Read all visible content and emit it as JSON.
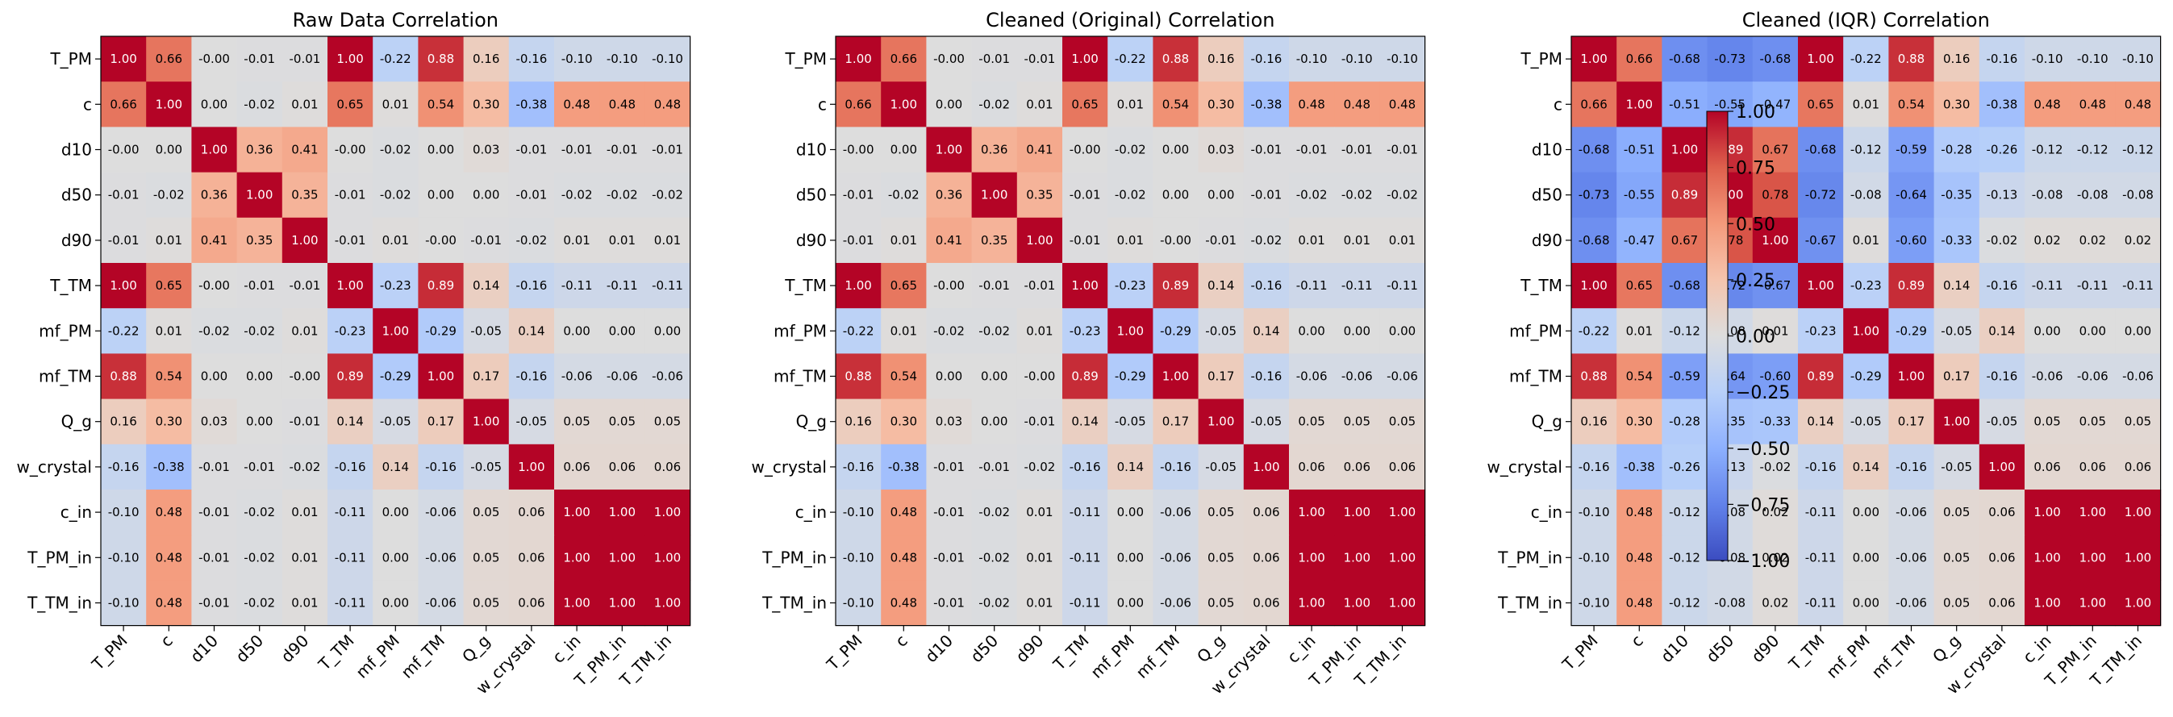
{
  "chart_data": [
    {
      "type": "heatmap",
      "title": "Raw Data Correlation",
      "labels": [
        "T_PM",
        "c",
        "d10",
        "d50",
        "d90",
        "T_TM",
        "mf_PM",
        "mf_TM",
        "Q_g",
        "w_crystal",
        "c_in",
        "T_PM_in",
        "T_TM_in"
      ],
      "value_range": [
        -1,
        1
      ],
      "colormap": "coolwarm",
      "values": [
        [
          1.0,
          0.66,
          -0.0,
          -0.01,
          -0.01,
          1.0,
          -0.22,
          0.88,
          0.16,
          -0.16,
          -0.1,
          -0.1,
          -0.1
        ],
        [
          0.66,
          1.0,
          0.0,
          -0.02,
          0.01,
          0.65,
          0.01,
          0.54,
          0.3,
          -0.38,
          0.48,
          0.48,
          0.48
        ],
        [
          -0.0,
          0.0,
          1.0,
          0.36,
          0.41,
          -0.0,
          -0.02,
          0.0,
          0.03,
          -0.01,
          -0.01,
          -0.01,
          -0.01
        ],
        [
          -0.01,
          -0.02,
          0.36,
          1.0,
          0.35,
          -0.01,
          -0.02,
          0.0,
          0.0,
          -0.01,
          -0.02,
          -0.02,
          -0.02
        ],
        [
          -0.01,
          0.01,
          0.41,
          0.35,
          1.0,
          -0.01,
          0.01,
          -0.0,
          -0.01,
          -0.02,
          0.01,
          0.01,
          0.01
        ],
        [
          1.0,
          0.65,
          -0.0,
          -0.01,
          -0.01,
          1.0,
          -0.23,
          0.89,
          0.14,
          -0.16,
          -0.11,
          -0.11,
          -0.11
        ],
        [
          -0.22,
          0.01,
          -0.02,
          -0.02,
          0.01,
          -0.23,
          1.0,
          -0.29,
          -0.05,
          0.14,
          0.0,
          0.0,
          0.0
        ],
        [
          0.88,
          0.54,
          0.0,
          0.0,
          -0.0,
          0.89,
          -0.29,
          1.0,
          0.17,
          -0.16,
          -0.06,
          -0.06,
          -0.06
        ],
        [
          0.16,
          0.3,
          0.03,
          0.0,
          -0.01,
          0.14,
          -0.05,
          0.17,
          1.0,
          -0.05,
          0.05,
          0.05,
          0.05
        ],
        [
          -0.16,
          -0.38,
          -0.01,
          -0.01,
          -0.02,
          -0.16,
          0.14,
          -0.16,
          -0.05,
          1.0,
          0.06,
          0.06,
          0.06
        ],
        [
          -0.1,
          0.48,
          -0.01,
          -0.02,
          0.01,
          -0.11,
          0.0,
          -0.06,
          0.05,
          0.06,
          1.0,
          1.0,
          1.0
        ],
        [
          -0.1,
          0.48,
          -0.01,
          -0.02,
          0.01,
          -0.11,
          0.0,
          -0.06,
          0.05,
          0.06,
          1.0,
          1.0,
          1.0
        ],
        [
          -0.1,
          0.48,
          -0.01,
          -0.02,
          0.01,
          -0.11,
          0.0,
          -0.06,
          0.05,
          0.06,
          1.0,
          1.0,
          1.0
        ]
      ]
    },
    {
      "type": "heatmap",
      "title": "Cleaned (Original) Correlation",
      "labels": [
        "T_PM",
        "c",
        "d10",
        "d50",
        "d90",
        "T_TM",
        "mf_PM",
        "mf_TM",
        "Q_g",
        "w_crystal",
        "c_in",
        "T_PM_in",
        "T_TM_in"
      ],
      "value_range": [
        -1,
        1
      ],
      "colormap": "coolwarm",
      "values": [
        [
          1.0,
          0.66,
          -0.0,
          -0.01,
          -0.01,
          1.0,
          -0.22,
          0.88,
          0.16,
          -0.16,
          -0.1,
          -0.1,
          -0.1
        ],
        [
          0.66,
          1.0,
          0.0,
          -0.02,
          0.01,
          0.65,
          0.01,
          0.54,
          0.3,
          -0.38,
          0.48,
          0.48,
          0.48
        ],
        [
          -0.0,
          0.0,
          1.0,
          0.36,
          0.41,
          -0.0,
          -0.02,
          0.0,
          0.03,
          -0.01,
          -0.01,
          -0.01,
          -0.01
        ],
        [
          -0.01,
          -0.02,
          0.36,
          1.0,
          0.35,
          -0.01,
          -0.02,
          0.0,
          0.0,
          -0.01,
          -0.02,
          -0.02,
          -0.02
        ],
        [
          -0.01,
          0.01,
          0.41,
          0.35,
          1.0,
          -0.01,
          0.01,
          -0.0,
          -0.01,
          -0.02,
          0.01,
          0.01,
          0.01
        ],
        [
          1.0,
          0.65,
          -0.0,
          -0.01,
          -0.01,
          1.0,
          -0.23,
          0.89,
          0.14,
          -0.16,
          -0.11,
          -0.11,
          -0.11
        ],
        [
          -0.22,
          0.01,
          -0.02,
          -0.02,
          0.01,
          -0.23,
          1.0,
          -0.29,
          -0.05,
          0.14,
          0.0,
          0.0,
          0.0
        ],
        [
          0.88,
          0.54,
          0.0,
          0.0,
          -0.0,
          0.89,
          -0.29,
          1.0,
          0.17,
          -0.16,
          -0.06,
          -0.06,
          -0.06
        ],
        [
          0.16,
          0.3,
          0.03,
          0.0,
          -0.01,
          0.14,
          -0.05,
          0.17,
          1.0,
          -0.05,
          0.05,
          0.05,
          0.05
        ],
        [
          -0.16,
          -0.38,
          -0.01,
          -0.01,
          -0.02,
          -0.16,
          0.14,
          -0.16,
          -0.05,
          1.0,
          0.06,
          0.06,
          0.06
        ],
        [
          -0.1,
          0.48,
          -0.01,
          -0.02,
          0.01,
          -0.11,
          0.0,
          -0.06,
          0.05,
          0.06,
          1.0,
          1.0,
          1.0
        ],
        [
          -0.1,
          0.48,
          -0.01,
          -0.02,
          0.01,
          -0.11,
          0.0,
          -0.06,
          0.05,
          0.06,
          1.0,
          1.0,
          1.0
        ],
        [
          -0.1,
          0.48,
          -0.01,
          -0.02,
          0.01,
          -0.11,
          0.0,
          -0.06,
          0.05,
          0.06,
          1.0,
          1.0,
          1.0
        ]
      ]
    },
    {
      "type": "heatmap",
      "title": "Cleaned (IQR) Correlation",
      "labels": [
        "T_PM",
        "c",
        "d10",
        "d50",
        "d90",
        "T_TM",
        "mf_PM",
        "mf_TM",
        "Q_g",
        "w_crystal",
        "c_in",
        "T_PM_in",
        "T_TM_in"
      ],
      "value_range": [
        -1,
        1
      ],
      "colormap": "coolwarm",
      "values": [
        [
          1.0,
          0.66,
          -0.68,
          -0.73,
          -0.68,
          1.0,
          -0.22,
          0.88,
          0.16,
          -0.16,
          -0.1,
          -0.1,
          -0.1
        ],
        [
          0.66,
          1.0,
          -0.51,
          -0.55,
          -0.47,
          0.65,
          0.01,
          0.54,
          0.3,
          -0.38,
          0.48,
          0.48,
          0.48
        ],
        [
          -0.68,
          -0.51,
          1.0,
          0.89,
          0.67,
          -0.68,
          -0.12,
          -0.59,
          -0.28,
          -0.26,
          -0.12,
          -0.12,
          -0.12
        ],
        [
          -0.73,
          -0.55,
          0.89,
          1.0,
          0.78,
          -0.72,
          -0.08,
          -0.64,
          -0.35,
          -0.13,
          -0.08,
          -0.08,
          -0.08
        ],
        [
          -0.68,
          -0.47,
          0.67,
          0.78,
          1.0,
          -0.67,
          0.01,
          -0.6,
          -0.33,
          -0.02,
          0.02,
          0.02,
          0.02
        ],
        [
          1.0,
          0.65,
          -0.68,
          -0.72,
          -0.67,
          1.0,
          -0.23,
          0.89,
          0.14,
          -0.16,
          -0.11,
          -0.11,
          -0.11
        ],
        [
          -0.22,
          0.01,
          -0.12,
          -0.08,
          0.01,
          -0.23,
          1.0,
          -0.29,
          -0.05,
          0.14,
          0.0,
          0.0,
          0.0
        ],
        [
          0.88,
          0.54,
          -0.59,
          -0.64,
          -0.6,
          0.89,
          -0.29,
          1.0,
          0.17,
          -0.16,
          -0.06,
          -0.06,
          -0.06
        ],
        [
          0.16,
          0.3,
          -0.28,
          -0.35,
          -0.33,
          0.14,
          -0.05,
          0.17,
          1.0,
          -0.05,
          0.05,
          0.05,
          0.05
        ],
        [
          -0.16,
          -0.38,
          -0.26,
          -0.13,
          -0.02,
          -0.16,
          0.14,
          -0.16,
          -0.05,
          1.0,
          0.06,
          0.06,
          0.06
        ],
        [
          -0.1,
          0.48,
          -0.12,
          -0.08,
          0.02,
          -0.11,
          0.0,
          -0.06,
          0.05,
          0.06,
          1.0,
          1.0,
          1.0
        ],
        [
          -0.1,
          0.48,
          -0.12,
          -0.08,
          0.02,
          -0.11,
          0.0,
          -0.06,
          0.05,
          0.06,
          1.0,
          1.0,
          1.0
        ],
        [
          -0.1,
          0.48,
          -0.12,
          -0.08,
          0.02,
          -0.11,
          0.0,
          -0.06,
          0.05,
          0.06,
          1.0,
          1.0,
          1.0
        ]
      ]
    }
  ],
  "colorbar": {
    "ticks": [
      "1.00",
      "0.75",
      "0.50",
      "0.25",
      "0.00",
      "−0.25",
      "−0.50",
      "−0.75",
      "−1.00"
    ],
    "tick_values": [
      1.0,
      0.75,
      0.5,
      0.25,
      0.0,
      -0.25,
      -0.5,
      -0.75,
      -1.0
    ]
  }
}
